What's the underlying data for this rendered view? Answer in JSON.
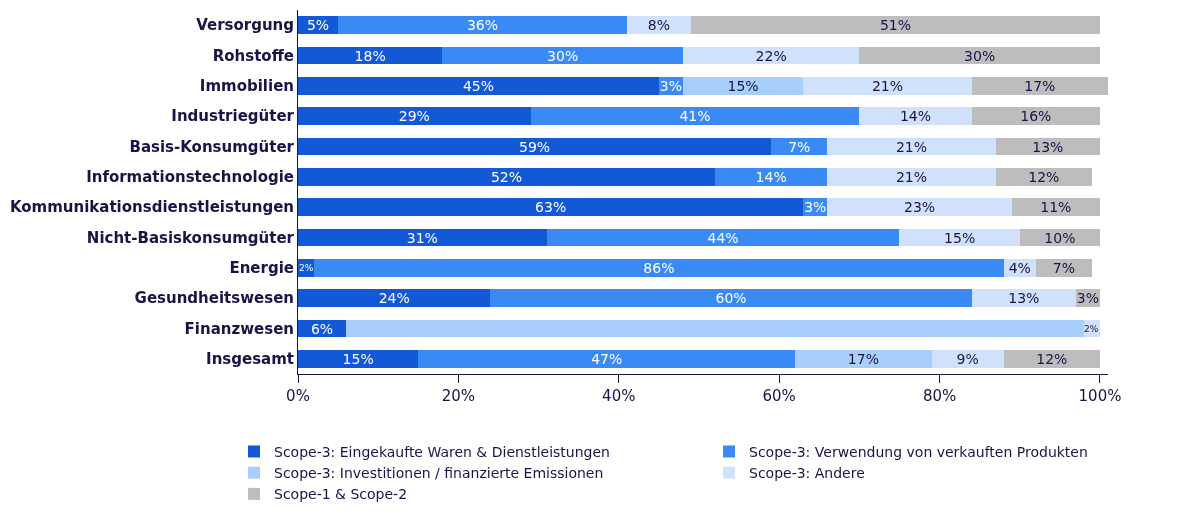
{
  "chart_data": {
    "type": "bar",
    "orientation": "horizontal",
    "stacked": true,
    "categories": [
      "Versorgung",
      "Rohstoffe",
      "Immobilien",
      "Industriegüter",
      "Basis-Konsumgüter",
      "Informationstechnologie",
      "Kommunikationsdienstleistungen",
      "Nicht-Basiskonsumgüter",
      "Energie",
      "Gesundheitswesen",
      "Finanzwesen",
      "Insgesamt"
    ],
    "series": [
      {
        "name": "Scope-3: Eingekaufte Waren & Dienstleistungen",
        "color": "#1358d6",
        "values": [
          5,
          18,
          45,
          29,
          59,
          52,
          63,
          31,
          2,
          24,
          6,
          15
        ],
        "value_labels": [
          "5%",
          "18%",
          "45%",
          "29%",
          "59%",
          "52%",
          "63%",
          "31%",
          "2%",
          "24%",
          "6%",
          "15%"
        ]
      },
      {
        "name": "Scope-3: Verwendung von verkauften Produkten",
        "color": "#3a8af5",
        "values": [
          36,
          30,
          3,
          41,
          7,
          14,
          3,
          44,
          86,
          60,
          null,
          47
        ],
        "value_labels": [
          "36%",
          "30%",
          "3%",
          "41%",
          "7%",
          "14%",
          "3%",
          "44%",
          "86%",
          "60%",
          null,
          "47%"
        ]
      },
      {
        "name": "Scope-3: Investitionen / finanzierte Emissionen",
        "color": "#a8cffb",
        "values": [
          null,
          null,
          15,
          null,
          null,
          null,
          null,
          null,
          null,
          null,
          92,
          17
        ],
        "value_labels": [
          null,
          null,
          "15%",
          null,
          null,
          null,
          null,
          null,
          null,
          null,
          null,
          "17%"
        ]
      },
      {
        "name": "Scope-3: Andere",
        "color": "#d0e2fb",
        "values": [
          8,
          22,
          21,
          14,
          21,
          21,
          23,
          15,
          4,
          13,
          2,
          9
        ],
        "value_labels": [
          "8%",
          "22%",
          "21%",
          "14%",
          "21%",
          "21%",
          "23%",
          "15%",
          "4%",
          "13%",
          "2%",
          "9%"
        ]
      },
      {
        "name": "Scope-1 & Scope-2",
        "color": "#bdbdbd",
        "values": [
          51,
          30,
          17,
          16,
          13,
          12,
          11,
          10,
          7,
          3,
          null,
          12
        ],
        "value_labels": [
          "51%",
          "30%",
          "17%",
          "16%",
          "13%",
          "12%",
          "11%",
          "10%",
          "7%",
          "3%",
          null,
          "12%"
        ]
      }
    ],
    "xlim": [
      0,
      101
    ],
    "xticks": [
      {
        "value": 0,
        "label": "0%"
      },
      {
        "value": 20,
        "label": "20%"
      },
      {
        "value": 40,
        "label": "40%"
      },
      {
        "value": 60,
        "label": "60%"
      },
      {
        "value": 80,
        "label": "80%"
      },
      {
        "value": 100,
        "label": "100%"
      }
    ],
    "legend": "bottom"
  }
}
